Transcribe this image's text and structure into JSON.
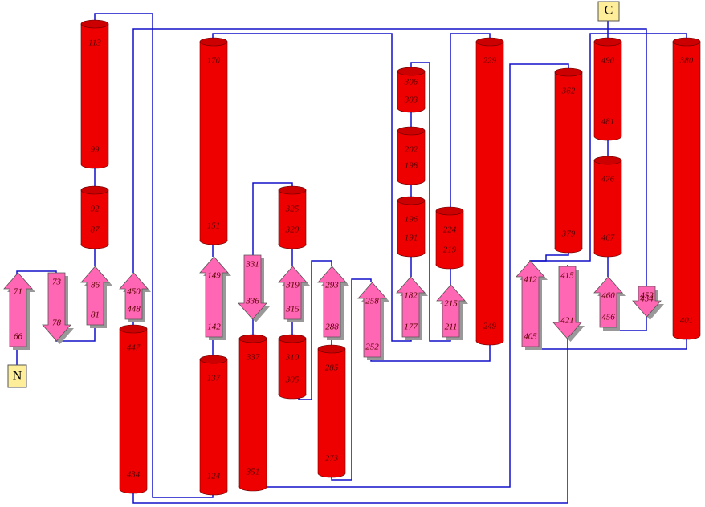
{
  "termini": {
    "n": "N",
    "c": "C"
  },
  "helices": [
    {
      "top": "113",
      "bottom": "99"
    },
    {
      "top": "92",
      "bottom": "87"
    },
    {
      "top": "170",
      "bottom": "151"
    },
    {
      "top": "137",
      "bottom": "124"
    },
    {
      "top": "447",
      "bottom": "434"
    },
    {
      "top": "337",
      "bottom": "351"
    },
    {
      "top": "325",
      "bottom": "320"
    },
    {
      "top": "310",
      "bottom": "305"
    },
    {
      "top": "285",
      "bottom": "273"
    },
    {
      "top": "306",
      "bottom": "303"
    },
    {
      "top": "202",
      "bottom": "198"
    },
    {
      "top": "196",
      "bottom": "191"
    },
    {
      "top": "224",
      "bottom": "219"
    },
    {
      "top": "229",
      "bottom": "249"
    },
    {
      "top": "362",
      "bottom": "379"
    },
    {
      "top": "490",
      "bottom": "481"
    },
    {
      "top": "476",
      "bottom": "467"
    },
    {
      "top": "380",
      "bottom": "401"
    }
  ],
  "strands": [
    {
      "top": "71",
      "bottom": "66"
    },
    {
      "top": "73",
      "bottom": "78"
    },
    {
      "top": "86",
      "bottom": "81"
    },
    {
      "top": "450",
      "bottom": "448"
    },
    {
      "top": "149",
      "bottom": "142"
    },
    {
      "top": "331",
      "bottom": "336"
    },
    {
      "top": "319",
      "bottom": "315"
    },
    {
      "top": "293",
      "bottom": "288"
    },
    {
      "top": "258",
      "bottom": "252"
    },
    {
      "top": "182",
      "bottom": "177"
    },
    {
      "top": "215",
      "bottom": "211"
    },
    {
      "top": "412",
      "bottom": "405"
    },
    {
      "top": "415",
      "bottom": "421"
    },
    {
      "top": "460",
      "bottom": "456"
    },
    {
      "top": "452",
      "bottom": "454"
    }
  ]
}
